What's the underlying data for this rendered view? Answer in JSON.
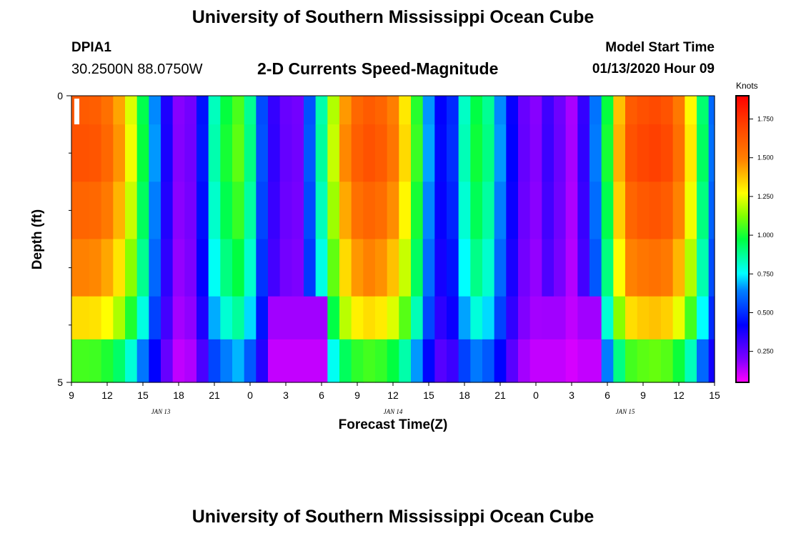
{
  "header": {
    "title": "University of Southern Mississippi Ocean Cube",
    "station": "DPIA1",
    "coords": "30.2500N 88.0750W",
    "subtitle": "2-D Currents Speed-Magnitude",
    "model_start_label": "Model Start Time",
    "model_start_value": "01/13/2020 Hour 09"
  },
  "footer": {
    "title": "University of Southern Mississippi Ocean Cube"
  },
  "chart_data": {
    "type": "heatmap",
    "title": "2-D Currents Speed-Magnitude",
    "xlabel": "Forecast Time(Z)",
    "ylabel": "Depth (ft)",
    "colorbar_label": "Knots",
    "x_tick_labels": [
      "9",
      "12",
      "15",
      "18",
      "21",
      "0",
      "3",
      "6",
      "9",
      "12",
      "15",
      "18",
      "21",
      "0",
      "3",
      "6",
      "9",
      "12",
      "15"
    ],
    "date_labels": [
      "JAN 13",
      "JAN 14",
      "JAN 15"
    ],
    "y_tick_labels": [
      "0",
      "5"
    ],
    "ylim": [
      0,
      5
    ],
    "colorbar_ticks": [
      "1.750",
      "1.500",
      "1.250",
      "1.000",
      "0.750",
      "0.500",
      "0.250"
    ],
    "colorbar_range": [
      0.05,
      1.9
    ],
    "x_hours": [
      0,
      54
    ],
    "depth_bins": [
      0.25,
      1.0,
      2.0,
      3.0,
      4.0,
      4.75
    ],
    "surface_speed": [
      1.62,
      1.62,
      1.61,
      1.55,
      1.43,
      1.23,
      0.96,
      0.65,
      0.37,
      0.19,
      0.22,
      0.45,
      0.83,
      0.98,
      1.06,
      0.88,
      0.55,
      0.33,
      0.24,
      0.22,
      0.56,
      0.85,
      1.18,
      1.45,
      1.58,
      1.62,
      1.59,
      1.5,
      1.31,
      1.02,
      0.66,
      0.42,
      0.49,
      0.82,
      0.97,
      0.88,
      0.65,
      0.41,
      0.24,
      0.19,
      0.31,
      0.23,
      0.15,
      0.33,
      0.62,
      0.98,
      1.38,
      1.62,
      1.66,
      1.68,
      1.65,
      1.52,
      1.28,
      0.92,
      0.6
    ],
    "depth_factors": [
      1.0,
      1.02,
      0.98,
      0.92,
      0.82,
      0.65
    ],
    "calm_gaps": [
      {
        "start": 17,
        "end": 21
      },
      {
        "start": 39,
        "end": 44
      }
    ]
  }
}
